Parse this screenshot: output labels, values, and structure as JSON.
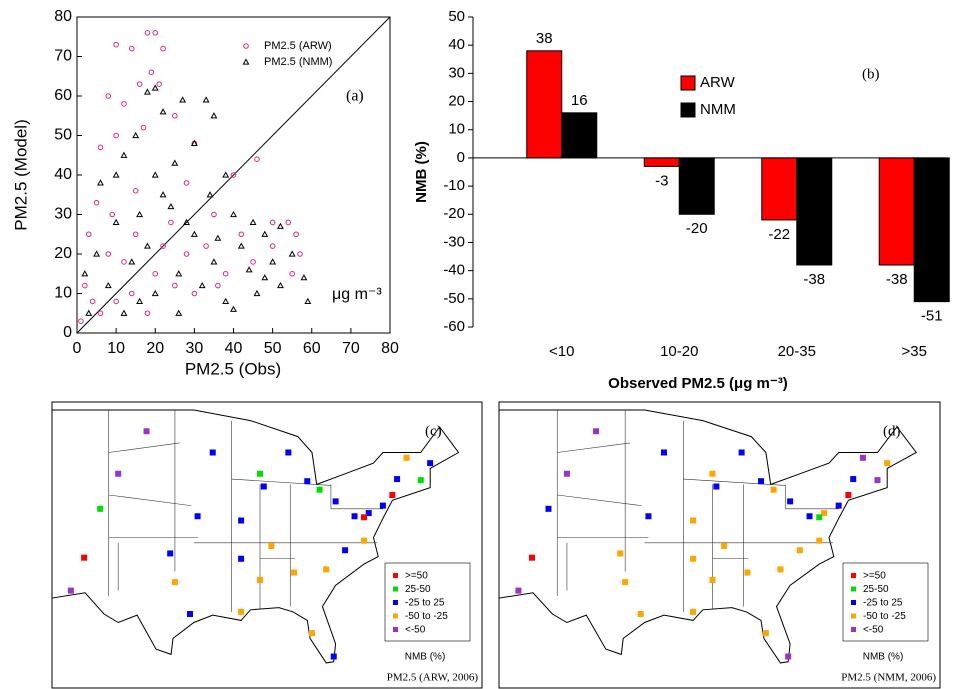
{
  "chart_data": [
    {
      "type": "scatter",
      "panel_label": "(a)",
      "xlabel": "PM2.5 (Obs)",
      "ylabel": "PM2.5 (Model)",
      "annotation": "μg m⁻³",
      "xlim": [
        0,
        80
      ],
      "ylim": [
        0,
        80
      ],
      "xticks": [
        0,
        10,
        20,
        30,
        40,
        50,
        60,
        70,
        80
      ],
      "yticks": [
        0,
        10,
        20,
        30,
        40,
        50,
        60,
        70,
        80
      ],
      "series": [
        {
          "name": "PM2.5 (ARW)",
          "color": "#e0268a",
          "marker": "circle",
          "x": [
            18,
            20,
            10,
            14,
            22,
            19,
            16,
            21,
            8,
            12,
            25,
            17,
            10,
            6,
            30,
            46,
            40,
            28,
            15,
            5,
            35,
            50,
            54,
            56,
            50,
            57,
            45,
            55,
            38,
            3,
            8,
            12,
            20,
            25,
            30,
            4,
            10,
            15,
            22,
            2,
            6,
            18,
            28,
            33,
            42,
            1,
            9,
            24,
            36,
            14
          ],
          "values": [
            76,
            76,
            73,
            72,
            72,
            66,
            63,
            63,
            60,
            58,
            55,
            52,
            50,
            47,
            48,
            44,
            40,
            38,
            36,
            33,
            30,
            28,
            28,
            25,
            22,
            20,
            18,
            15,
            15,
            25,
            20,
            18,
            15,
            12,
            10,
            8,
            8,
            25,
            22,
            12,
            5,
            5,
            20,
            22,
            25,
            3,
            30,
            28,
            12,
            10
          ]
        },
        {
          "name": "PM2.5 (NMM)",
          "color": "#000000",
          "marker": "triangle",
          "x": [
            20,
            18,
            27,
            33,
            22,
            35,
            15,
            30,
            12,
            25,
            38,
            20,
            40,
            45,
            48,
            52,
            42,
            55,
            50,
            58,
            52,
            46,
            59,
            35,
            30,
            24,
            16,
            10,
            5,
            8,
            14,
            20,
            26,
            32,
            38,
            3,
            12,
            18,
            28,
            44,
            22,
            6,
            34,
            40,
            48,
            26,
            16,
            2,
            36,
            10
          ],
          "values": [
            62,
            61,
            59,
            59,
            56,
            55,
            50,
            48,
            45,
            43,
            40,
            40,
            30,
            28,
            25,
            27,
            22,
            20,
            18,
            14,
            12,
            10,
            8,
            18,
            25,
            32,
            30,
            28,
            20,
            12,
            18,
            10,
            15,
            12,
            8,
            5,
            5,
            22,
            28,
            16,
            35,
            38,
            35,
            6,
            14,
            5,
            8,
            15,
            24,
            40
          ]
        }
      ]
    },
    {
      "type": "bar",
      "panel_label": "(b)",
      "ylabel": "NMB (%)",
      "xlabel": "Observed PM2.5 (μg m⁻³)",
      "categories": [
        "<10",
        "10-20",
        "20-35",
        ">35"
      ],
      "ylim": [
        -60,
        50
      ],
      "yticks": [
        -60,
        -50,
        -40,
        -30,
        -20,
        -10,
        0,
        10,
        20,
        30,
        40,
        50
      ],
      "series": [
        {
          "name": "ARW",
          "color": "#ff0000",
          "values": [
            38,
            -3,
            -22,
            -38
          ]
        },
        {
          "name": "NMM",
          "color": "#000000",
          "values": [
            16,
            -20,
            -38,
            -51
          ]
        }
      ]
    },
    {
      "type": "map",
      "panel_label": "(c)",
      "caption": "PM2.5 (ARW, 2006)",
      "legend": {
        "title": "NMB (%)",
        "labels": [
          ">=50",
          "25-50",
          "-25 to 25",
          "-50 to -25",
          "<-50"
        ],
        "colors": [
          "#ff0000",
          "#00dd00",
          "#0000ff",
          "#ffa500",
          "#9933cc"
        ]
      },
      "lon": [
        -73.5,
        -74,
        -75,
        -76.5,
        -77,
        -78,
        -80,
        -81.7,
        -83,
        -87.6,
        -88,
        -90,
        -93,
        -94.6,
        -90,
        -86.8,
        -84.4,
        -81,
        -80.2,
        -82.5,
        -90,
        -95.4,
        -97,
        -97.5,
        -104.9,
        -106.6,
        -108,
        -103,
        -100,
        -71,
        -70,
        -72.5,
        -85,
        -88,
        -79,
        -77
      ],
      "lat": [
        42.5,
        41,
        40,
        39.3,
        38.9,
        39,
        40.4,
        41.5,
        42.3,
        41.8,
        43,
        38.6,
        45,
        39,
        35,
        36.2,
        33.7,
        34,
        25.8,
        28,
        30,
        29.8,
        32.8,
        35.5,
        39.7,
        35.1,
        32,
        43,
        47,
        42.4,
        44,
        44.5,
        45,
        33,
        35.8,
        36.7
      ],
      "category": [
        2,
        0,
        2,
        2,
        0,
        2,
        2,
        1,
        2,
        2,
        1,
        2,
        2,
        2,
        2,
        3,
        3,
        3,
        2,
        3,
        3,
        2,
        3,
        2,
        1,
        0,
        4,
        4,
        4,
        1,
        2,
        3,
        2,
        3,
        2,
        3
      ]
    },
    {
      "type": "map",
      "panel_label": "(d)",
      "caption": "PM2.5 (NMM, 2006)",
      "legend": {
        "title": "NMB (%)",
        "labels": [
          ">=50",
          "25-50",
          "-25 to 25",
          "-50 to -25",
          "<-50"
        ],
        "colors": [
          "#ff0000",
          "#00dd00",
          "#0000ff",
          "#ffa500",
          "#9933cc"
        ]
      },
      "lon": [
        -73.5,
        -74,
        -75,
        -76.5,
        -77,
        -78,
        -80,
        -81.7,
        -83,
        -87.6,
        -88,
        -90,
        -93,
        -94.6,
        -90,
        -86.8,
        -84.4,
        -81,
        -80.2,
        -82.5,
        -90,
        -95.4,
        -97,
        -97.5,
        -104.9,
        -106.6,
        -108,
        -103,
        -100,
        -71,
        -70,
        -72.5,
        -85,
        -88,
        -79,
        -77
      ],
      "lat": [
        42.5,
        41,
        40,
        39.3,
        38.9,
        39,
        40.4,
        41.5,
        42.3,
        41.8,
        43,
        38.6,
        45,
        39,
        35,
        36.2,
        33.7,
        34,
        25.8,
        28,
        30,
        29.8,
        32.8,
        35.5,
        39.7,
        35.1,
        32,
        43,
        47,
        42.4,
        44,
        44.5,
        45,
        33,
        35.8,
        36.7
      ],
      "category": [
        2,
        0,
        2,
        3,
        1,
        2,
        2,
        3,
        2,
        2,
        3,
        3,
        2,
        2,
        3,
        3,
        3,
        3,
        4,
        3,
        3,
        3,
        3,
        3,
        2,
        0,
        4,
        4,
        4,
        4,
        3,
        4,
        2,
        3,
        3,
        3
      ]
    }
  ]
}
